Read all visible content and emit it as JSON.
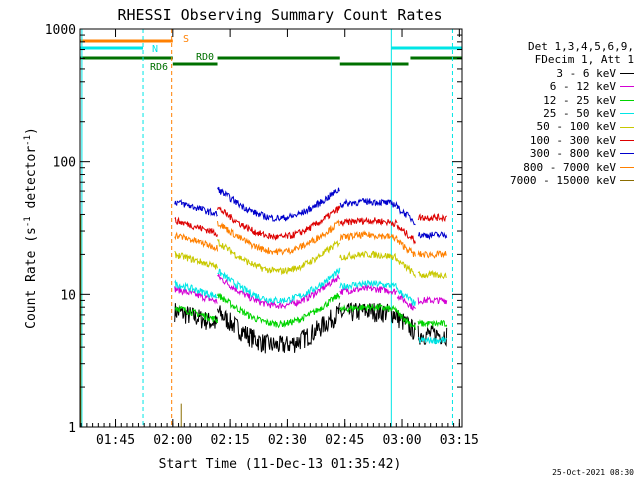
{
  "chart_data": {
    "type": "line",
    "title": "RHESSI Observing Summary Count Rates",
    "xlabel": "Start Time (11-Dec-13 01:35:42)",
    "ylabel_main": "Count Rate (s",
    "ylabel_sup1": "-1",
    "ylabel_mid": " detector",
    "ylabel_sup2": "-1",
    "ylabel_end": ")",
    "x_start_min": 0,
    "x_end_min": 100,
    "x_ticks": [
      {
        "min": 9.3,
        "label": "01:45"
      },
      {
        "min": 24.3,
        "label": "02:00"
      },
      {
        "min": 39.3,
        "label": "02:15"
      },
      {
        "min": 54.3,
        "label": "02:30"
      },
      {
        "min": 69.3,
        "label": "02:45"
      },
      {
        "min": 84.3,
        "label": "03:00"
      },
      {
        "min": 99.3,
        "label": "03:15"
      }
    ],
    "yscale": "log",
    "ylim": [
      1,
      1000
    ],
    "y_ticks": [
      {
        "v": 1,
        "label": "1"
      },
      {
        "v": 10,
        "label": "10"
      },
      {
        "v": 100,
        "label": "100"
      },
      {
        "v": 1000,
        "label": "1000"
      }
    ],
    "legend_header": [
      "Det 1,3,4,5,6,9,",
      "FDecim 1, Att 1"
    ],
    "series": [
      {
        "name": "3 - 6 keV",
        "color": "#000000",
        "base": 7.5,
        "end": 5
      },
      {
        "name": "6 - 12 keV",
        "color": "#d400d4",
        "base": 11,
        "end": 9
      },
      {
        "name": "12 - 25 keV",
        "color": "#00d400",
        "base": 8,
        "end": 6
      },
      {
        "name": "25 - 50 keV",
        "color": "#00e6e6",
        "base": 12,
        "end": 4.5
      },
      {
        "name": "50 - 100 keV",
        "color": "#c8c800",
        "base": 20,
        "end": 14
      },
      {
        "name": "100 - 300 keV",
        "color": "#dd0000",
        "base": 36,
        "end": 38
      },
      {
        "name": "300 - 800 keV",
        "color": "#0000cc",
        "base": 50,
        "end": 28
      },
      {
        "name": "800 - 7000 keV",
        "color": "#ff8000",
        "base": 28,
        "end": 20
      },
      {
        "name": "7000 - 15000 keV",
        "color": "#8a6c00",
        "base": 1,
        "end": 1
      }
    ],
    "segments": [
      {
        "start": 24.8,
        "end": 36
      },
      {
        "start": 36,
        "end": 68
      },
      {
        "start": 68,
        "end": 83
      },
      {
        "start": 83,
        "end": 87.8
      },
      {
        "start": 88.5,
        "end": 96
      }
    ],
    "annotations": [
      {
        "label": "S",
        "color": "#ff8000"
      },
      {
        "label": "N",
        "color": "#00e6e6"
      },
      {
        "label": "RD0",
        "color": "#007000"
      },
      {
        "label": "RD6",
        "color": "#007000"
      }
    ],
    "flag_bars": [
      {
        "color": "#ff8000",
        "y": 41,
        "x0": 0,
        "x1": 24.3
      },
      {
        "color": "#00e6e6",
        "y": 48,
        "x0": 0,
        "x1": 16.5
      },
      {
        "color": "#00e6e6",
        "y": 48,
        "x0": 81.5,
        "x1": 100
      },
      {
        "color": "#007000",
        "y": 58,
        "x0": 0,
        "x1": 24.3
      },
      {
        "color": "#007000",
        "y": 58,
        "x0": 36,
        "x1": 68
      },
      {
        "color": "#007000",
        "y": 58,
        "x0": 86.5,
        "x1": 100
      },
      {
        "color": "#007000",
        "y": 64,
        "x0": 24.3,
        "x1": 36
      },
      {
        "color": "#007000",
        "y": 64,
        "x0": 68,
        "x1": 86
      }
    ],
    "vlines": [
      {
        "min": 16.5,
        "color": "#00e6e6"
      },
      {
        "min": 24.0,
        "color": "#ff8000"
      },
      {
        "min": 97.5,
        "color": "#00e6e6"
      }
    ],
    "solid_vlines": [
      {
        "min": 0.5,
        "color": "#00e6e6"
      },
      {
        "min": 81.5,
        "color": "#00e6e6"
      }
    ]
  },
  "footer_date": "25-Oct-2021 08:30"
}
